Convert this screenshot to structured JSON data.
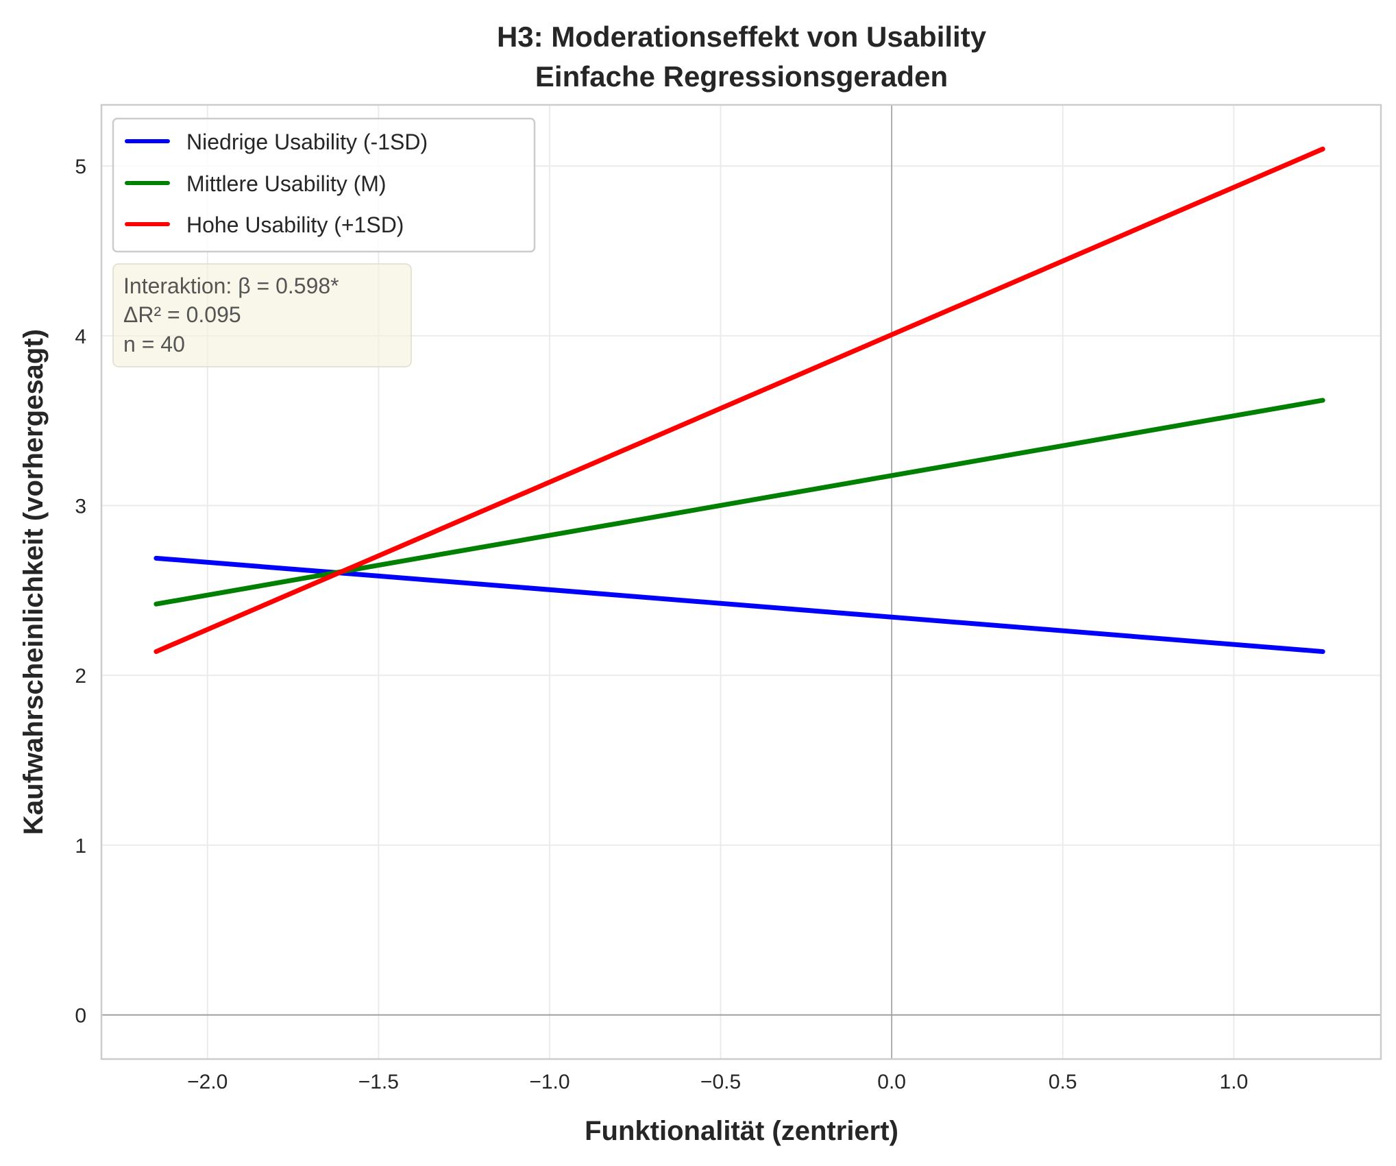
{
  "chart_data": {
    "type": "line",
    "title_line1": "H3: Moderationseffekt von Usability",
    "title_line2": "Einfache Regressionsgeraden",
    "xlabel": "Funktionalität (zentriert)",
    "ylabel": "Kaufwahrscheinlichkeit (vorhergesagt)",
    "xlim": [
      -2.31,
      1.43
    ],
    "ylim": [
      -0.26,
      5.36
    ],
    "xticks": [
      -2.0,
      -1.5,
      -1.0,
      -0.5,
      0.0,
      0.5,
      1.0
    ],
    "xtick_labels": [
      "−2.0",
      "−1.5",
      "−1.0",
      "−0.5",
      "0.0",
      "0.5",
      "1.0"
    ],
    "yticks": [
      0,
      1,
      2,
      3,
      4,
      5
    ],
    "ytick_labels": [
      "0",
      "1",
      "2",
      "3",
      "4",
      "5"
    ],
    "grid": true,
    "reference_lines": {
      "x": 0,
      "y": 0
    },
    "legend_position": "upper-left",
    "series": [
      {
        "name": "Niedrige Usability (-1SD)",
        "color": "#0000ff",
        "x": [
          -2.15,
          1.26
        ],
        "y": [
          2.69,
          2.14
        ]
      },
      {
        "name": "Mittlere Usability (M)",
        "color": "#008000",
        "x": [
          -2.15,
          1.26
        ],
        "y": [
          2.42,
          3.62
        ]
      },
      {
        "name": "Hohe Usability (+1SD)",
        "color": "#ff0000",
        "x": [
          -2.15,
          1.26
        ],
        "y": [
          2.14,
          5.1
        ]
      }
    ],
    "annotation": [
      "Interaktion: β = 0.598*",
      "ΔR² = 0.095",
      "n = 40"
    ]
  }
}
